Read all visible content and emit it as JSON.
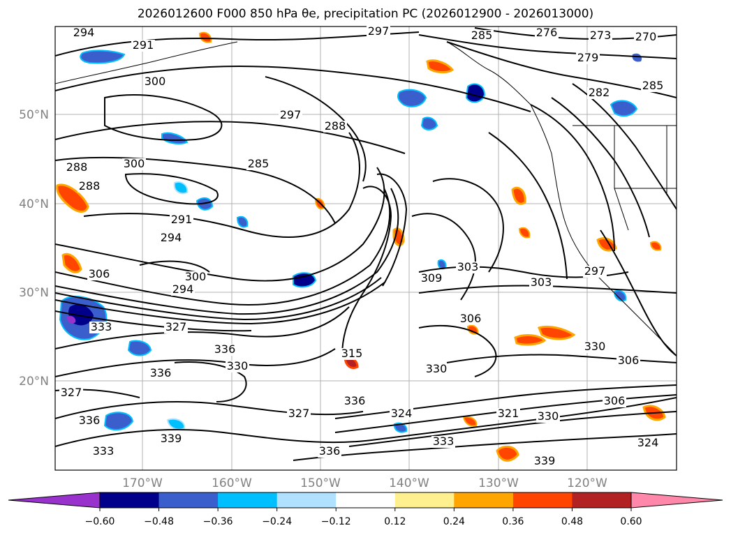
{
  "title": "2026012600 F000 850 hPa θe, precipitation PC (2026012900 - 2026013000)",
  "map": {
    "latitude_labels": [
      "50°N",
      "40°N",
      "30°N",
      "20°N"
    ],
    "longitude_labels": [
      "170°W",
      "160°W",
      "150°W",
      "140°W",
      "130°W",
      "120°W"
    ],
    "gridlines": true,
    "contour_color": "#000000",
    "contour_labels": [
      "294",
      "291",
      "297",
      "285",
      "276",
      "273",
      "270",
      "279",
      "300",
      "282",
      "285",
      "288",
      "300",
      "297",
      "288",
      "285",
      "288",
      "291",
      "294",
      "306",
      "300",
      "294",
      "309",
      "303",
      "303",
      "306",
      "297",
      "333",
      "327",
      "336",
      "330",
      "336",
      "315",
      "330",
      "336",
      "327",
      "324",
      "321",
      "330",
      "333",
      "336",
      "339",
      "339",
      "330",
      "306",
      "306",
      "327",
      "336",
      "333",
      "324"
    ]
  },
  "colorbar": {
    "tick_labels": [
      "−0.60",
      "−0.48",
      "−0.36",
      "−0.24",
      "−0.12",
      "0.12",
      "0.24",
      "0.36",
      "0.48",
      "0.60"
    ],
    "colors": [
      "#9932cc",
      "#00008b",
      "#3a5fcd",
      "#00bfff",
      "#b0e2ff",
      "#ffffff",
      "#fff08f",
      "#ffa500",
      "#ff4500",
      "#b22222",
      "#ff88aa"
    ]
  }
}
